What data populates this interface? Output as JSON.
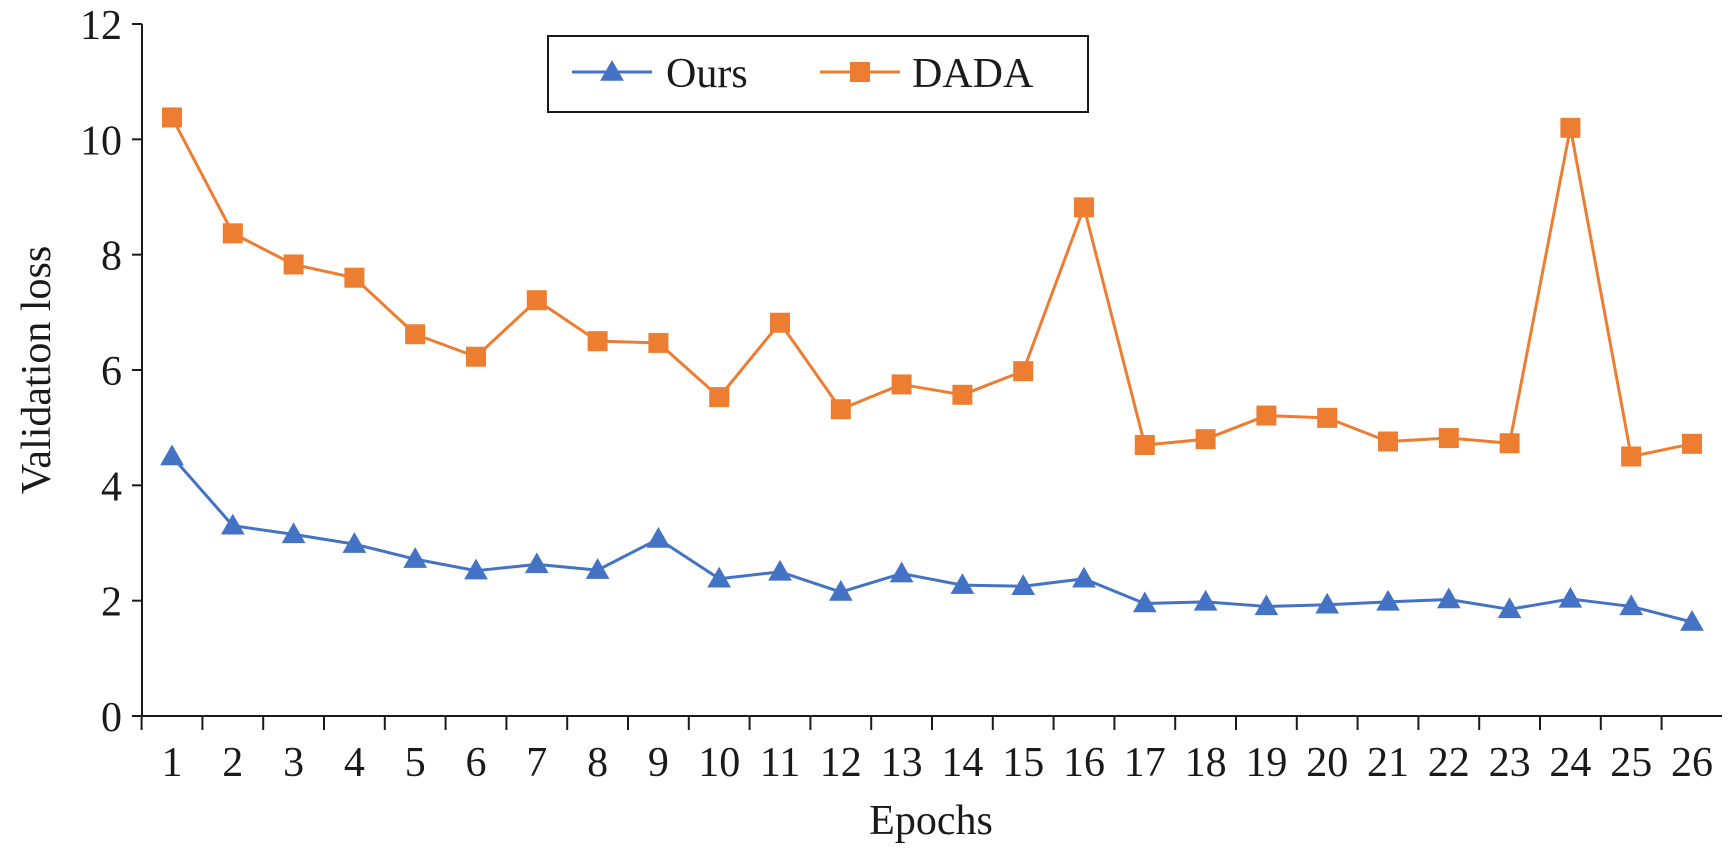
{
  "chart_data": {
    "type": "line",
    "title": "",
    "xlabel": "Epochs",
    "ylabel": "Validation loss",
    "ylim": [
      0,
      12
    ],
    "yticks": [
      0,
      2,
      4,
      6,
      8,
      10,
      12
    ],
    "grid": false,
    "legend_position": "top-center",
    "categories": [
      "1",
      "2",
      "3",
      "4",
      "5",
      "6",
      "7",
      "8",
      "9",
      "10",
      "11",
      "12",
      "13",
      "14",
      "15",
      "16",
      "17",
      "18",
      "19",
      "20",
      "21",
      "22",
      "23",
      "24",
      "25",
      "26"
    ],
    "series": [
      {
        "name": "Ours",
        "color": "#4472c4",
        "marker": "triangle",
        "values": [
          4.5,
          3.3,
          3.15,
          2.98,
          2.72,
          2.52,
          2.63,
          2.53,
          3.07,
          2.38,
          2.5,
          2.15,
          2.47,
          2.27,
          2.25,
          2.38,
          1.95,
          1.98,
          1.9,
          1.93,
          1.98,
          2.02,
          1.85,
          2.03,
          1.9,
          1.63
        ]
      },
      {
        "name": "DADA",
        "color": "#ed7d31",
        "marker": "square",
        "values": [
          10.38,
          8.37,
          7.83,
          7.6,
          6.62,
          6.23,
          7.21,
          6.5,
          6.47,
          5.53,
          6.82,
          5.32,
          5.75,
          5.57,
          5.98,
          8.82,
          4.7,
          4.8,
          5.21,
          5.17,
          4.76,
          4.82,
          4.73,
          10.2,
          4.5,
          4.72
        ]
      }
    ]
  }
}
